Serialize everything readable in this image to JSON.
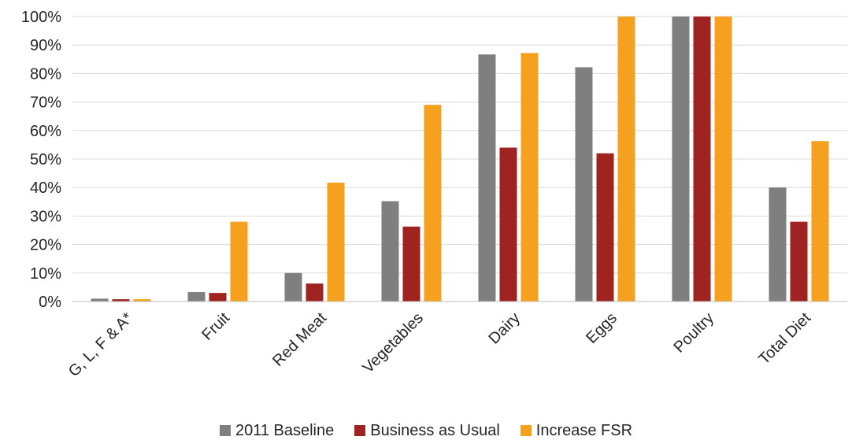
{
  "chart_data": {
    "type": "bar",
    "categories": [
      "G, L, F & A*",
      "Fruit",
      "Red Meat",
      "Vegetables",
      "Dairy",
      "Eggs",
      "Poultry",
      "Total Diet"
    ],
    "series": [
      {
        "name": "2011 Baseline",
        "color": "#7f7f7f",
        "values": [
          1,
          3.3,
          10,
          35.2,
          86.7,
          82.2,
          100,
          40
        ]
      },
      {
        "name": "Business as Usual",
        "color": "#9e2321",
        "values": [
          0.8,
          3,
          6.3,
          26.3,
          54,
          52,
          100,
          28
        ]
      },
      {
        "name": "Increase FSR",
        "color": "#f5a01e",
        "values": [
          0.8,
          28,
          41.7,
          69,
          87.2,
          100,
          100,
          56.3
        ]
      }
    ],
    "yticks": [
      "0%",
      "10%",
      "20%",
      "30%",
      "40%",
      "50%",
      "60%",
      "70%",
      "80%",
      "90%",
      "100%"
    ],
    "ylim": [
      0,
      100
    ],
    "grid": true,
    "legend_position": "bottom",
    "title": "",
    "xlabel": "",
    "ylabel": ""
  }
}
